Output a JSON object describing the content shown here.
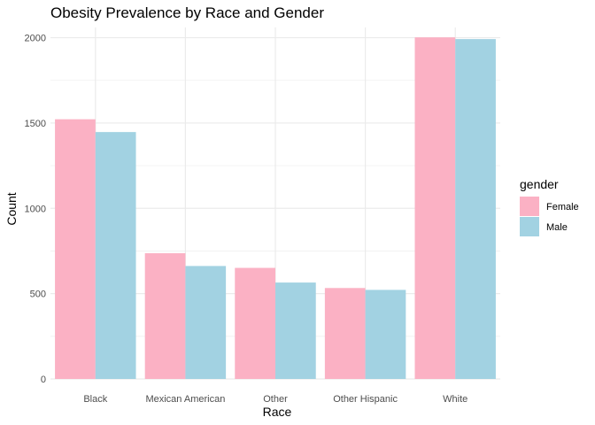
{
  "chart_data": {
    "type": "bar",
    "title": "Obesity Prevalence by Race and Gender",
    "xlabel": "Race",
    "ylabel": "Count",
    "categories": [
      "Black",
      "Mexican American",
      "Other",
      "Other Hispanic",
      "White"
    ],
    "series": [
      {
        "name": "Female",
        "color": "#FBB1C4",
        "values": [
          1522,
          737,
          651,
          533,
          2002
        ]
      },
      {
        "name": "Male",
        "color": "#A2D2E2",
        "values": [
          1447,
          662,
          565,
          522,
          1992
        ]
      }
    ],
    "ylim": [
      0,
      2060
    ],
    "yticks": [
      0,
      500,
      1000,
      1500,
      2000
    ],
    "ytick_labels": [
      "0",
      "500",
      "1000",
      "1500",
      "2000"
    ],
    "grid": true,
    "legend": {
      "title": "gender",
      "position": "right"
    }
  }
}
